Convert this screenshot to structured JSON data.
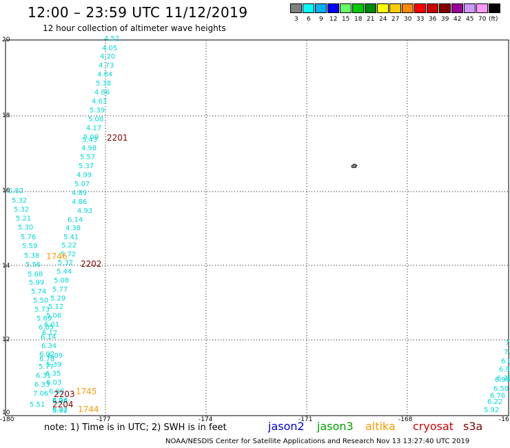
{
  "header": {
    "title": "12:00 – 23:59 UTC 11/12/2019",
    "subtitle": "12 hour collection of altimeter wave heights"
  },
  "colorbar": {
    "colors": [
      "#808080",
      "#00ffff",
      "#00b0ff",
      "#0000ff",
      "#66ff66",
      "#00cc00",
      "#008800",
      "#ffff00",
      "#ffcc00",
      "#ff8800",
      "#ff0000",
      "#cc0000",
      "#800000",
      "#990099",
      "#cc99ff",
      "#ff99ff",
      "#000000"
    ],
    "labels": [
      "3",
      "6",
      "9",
      "12",
      "15",
      "18",
      "21",
      "24",
      "27",
      "30",
      "33",
      "36",
      "39",
      "42",
      "45",
      "70",
      "(ft)"
    ]
  },
  "axes": {
    "x_ticks": [
      "-180",
      "-177",
      "-174",
      "-171",
      "-168",
      "-16"
    ],
    "y_ticks": [
      "20",
      "18",
      "16",
      "14",
      "12",
      "10"
    ]
  },
  "observations": {
    "track1": [
      "4.52",
      "4.05",
      "4.20",
      "4.73",
      "4.84",
      "5.38",
      "4.86",
      "4.63",
      "5.39",
      "5.08",
      "4.17",
      "5.09",
      "5.43",
      "4.98",
      "5.57",
      "5.37",
      "4.99",
      "5.07",
      "4.89",
      "4.86",
      "4.93",
      "6.14",
      "4.38",
      "5.41",
      "5.22",
      "5.72",
      "5.32",
      "5.44",
      "5.08",
      "5.77",
      "5.29",
      "5.12",
      "5.06",
      "6.01",
      "6.12",
      "6.09",
      "5.39",
      "6.35",
      "6.03",
      "6.80",
      "6.26",
      "6.94",
      "6.22",
      "5.92"
    ],
    "track2": [
      "5.82",
      "5.32",
      "5.32",
      "5.21",
      "5.30",
      "5.76",
      "5.59",
      "5.38",
      "5.56",
      "5.68",
      "5.99",
      "5.74",
      "5.50",
      "5.73",
      "5.69",
      "6.05",
      "6.14",
      "6.34",
      "6.02",
      "6.78",
      "5.77",
      "6.31",
      "6.33",
      "7.06",
      "5.51"
    ],
    "track3": [
      "7",
      "7.",
      "6.8",
      "6.9",
      "6.73",
      "6.96",
      "6.50",
      "6.76",
      "6.22",
      "5.92"
    ]
  },
  "time_labels": [
    {
      "text": "2201",
      "sat": "cryosat"
    },
    {
      "text": "2202",
      "sat": "cryosat"
    },
    {
      "text": "1746",
      "sat": "altika"
    },
    {
      "text": "1745",
      "sat": "altika"
    },
    {
      "text": "2203",
      "sat": "cryosat"
    },
    {
      "text": "2204",
      "sat": "cryosat"
    },
    {
      "text": "1744",
      "sat": "altika"
    }
  ],
  "sat_colors": {
    "jason2": "#0000dd",
    "jason3": "#00a000",
    "altika": "#ff9900",
    "cryosat": "#cc0000",
    "s3a": "#800000"
  },
  "footer": {
    "note": "note:  1) Time is in UTC;  2) SWH is in feet",
    "legend": {
      "jason2": "jason2",
      "jason3": "jason3",
      "altika": "altika",
      "cryosat": "cryosat",
      "s3a": "s3a"
    },
    "credit": "NOAA/NESDIS Center for Satellite Applications and Research     Nov 13 13:27:40 UTC 2019"
  }
}
